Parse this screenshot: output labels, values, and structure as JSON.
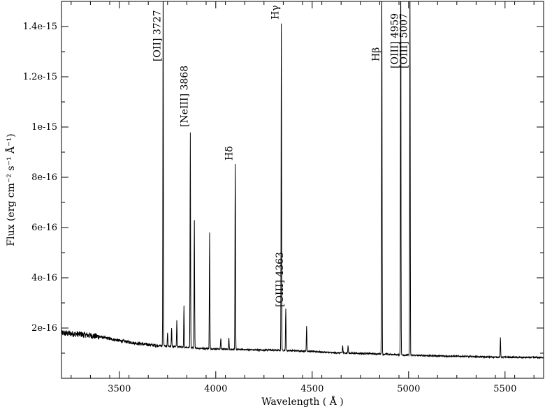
{
  "chart_data": {
    "type": "line",
    "xlabel": "Wavelength  ( Å )",
    "ylabel": "Flux (erg cm⁻² s⁻¹ Å⁻¹)",
    "xlim": [
      3200,
      5700
    ],
    "ylim": [
      0,
      1.5e-15
    ],
    "x_ticks": [
      3500,
      4000,
      4500,
      5000,
      5500
    ],
    "x_tick_labels": [
      "3500",
      "4000",
      "4500",
      "5000",
      "5500"
    ],
    "y_ticks": [
      2e-16,
      4e-16,
      6e-16,
      8e-16,
      1e-15,
      1.2e-15,
      1.4e-15
    ],
    "y_tick_labels": [
      "2e-16",
      "4e-16",
      "6e-16",
      "8e-16",
      "1e-15",
      "1.2e-15",
      "1.4e-15"
    ],
    "grid": false,
    "continuum": [
      [
        3200,
        1.8e-16
      ],
      [
        3300,
        1.75e-16
      ],
      [
        3400,
        1.65e-16
      ],
      [
        3500,
        1.5e-16
      ],
      [
        3600,
        1.38e-16
      ],
      [
        3700,
        1.3e-16
      ],
      [
        3800,
        1.25e-16
      ],
      [
        3900,
        1.2e-16
      ],
      [
        4000,
        1.17e-16
      ],
      [
        4100,
        1.15e-16
      ],
      [
        4200,
        1.13e-16
      ],
      [
        4300,
        1.12e-16
      ],
      [
        4400,
        1.1e-16
      ],
      [
        4500,
        1.07e-16
      ],
      [
        4600,
        1.02e-16
      ],
      [
        4700,
        1e-16
      ],
      [
        4800,
        9.8e-17
      ],
      [
        4900,
        9.5e-17
      ],
      [
        5000,
        9.2e-17
      ],
      [
        5100,
        9e-17
      ],
      [
        5200,
        8.8e-17
      ],
      [
        5300,
        8.7e-17
      ],
      [
        5400,
        8.5e-17
      ],
      [
        5500,
        8.4e-17
      ],
      [
        5600,
        8.3e-17
      ],
      [
        5700,
        8.3e-17
      ]
    ],
    "emission_lines": [
      {
        "x": 3727,
        "peak": 1.6e-15,
        "label": "[OII] 3727"
      },
      {
        "x": 3750,
        "peak": 1.8e-16,
        "label": ""
      },
      {
        "x": 3771,
        "peak": 2e-16,
        "label": ""
      },
      {
        "x": 3798,
        "peak": 2.3e-16,
        "label": ""
      },
      {
        "x": 3835,
        "peak": 2.9e-16,
        "label": ""
      },
      {
        "x": 3868,
        "peak": 9.8e-16,
        "label": "[NeIII] 3868"
      },
      {
        "x": 3889,
        "peak": 6.3e-16,
        "label": ""
      },
      {
        "x": 3968,
        "peak": 5.8e-16,
        "label": ""
      },
      {
        "x": 4026,
        "peak": 1.6e-16,
        "label": ""
      },
      {
        "x": 4068,
        "peak": 1.6e-16,
        "label": ""
      },
      {
        "x": 4101,
        "peak": 8.5e-16,
        "label": "Hδ"
      },
      {
        "x": 4340,
        "peak": 1.41e-15,
        "label": "Hγ"
      },
      {
        "x": 4363,
        "peak": 2.8e-16,
        "label": "[OIII] 4363"
      },
      {
        "x": 4471,
        "peak": 2.1e-16,
        "label": ""
      },
      {
        "x": 4658,
        "peak": 1.3e-16,
        "label": ""
      },
      {
        "x": 4686,
        "peak": 1.3e-16,
        "label": ""
      },
      {
        "x": 4861,
        "peak": 1.6e-15,
        "label": "Hβ"
      },
      {
        "x": 4959,
        "peak": 1.6e-15,
        "label": "[OIII] 4959"
      },
      {
        "x": 5007,
        "peak": 1.6e-15,
        "label": "[OIII] 5007"
      },
      {
        "x": 5476,
        "peak": 1.6e-16,
        "label": ""
      }
    ]
  }
}
